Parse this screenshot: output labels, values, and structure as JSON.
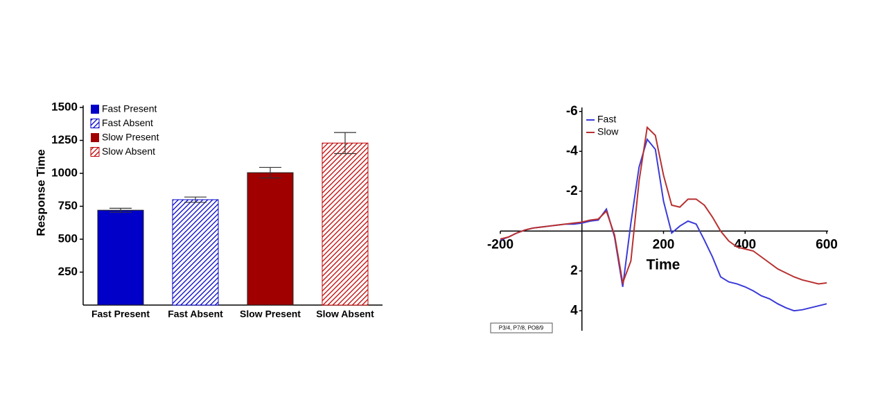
{
  "chart_data": [
    {
      "type": "bar",
      "ylabel": "Response Time",
      "categories": [
        "Fast Present",
        "Fast Absent",
        "Slow Present",
        "Slow Absent"
      ],
      "values": [
        720,
        800,
        1005,
        1230
      ],
      "errors": [
        15,
        20,
        40,
        80
      ],
      "colors": [
        "#0000c8",
        "#0000c8",
        "#a00000",
        "#c00000"
      ],
      "hatched": [
        false,
        true,
        false,
        true
      ],
      "ylim": [
        0,
        1500
      ],
      "yticks": [
        250,
        500,
        750,
        1000,
        1250,
        1500
      ]
    },
    {
      "type": "line",
      "xlabel": "Time",
      "annotation": "P3/4, P7/8, PO8/9",
      "x": [
        -200,
        -180,
        -160,
        -140,
        -120,
        -100,
        -80,
        -60,
        -40,
        -20,
        0,
        20,
        40,
        60,
        80,
        100,
        120,
        140,
        160,
        180,
        200,
        220,
        240,
        260,
        280,
        300,
        320,
        340,
        360,
        380,
        400,
        420,
        440,
        460,
        480,
        500,
        520,
        540,
        560,
        580,
        600
      ],
      "series": [
        {
          "name": "Fast",
          "color": "#3a3ad8",
          "values": [
            0.45,
            0.3,
            0.1,
            -0.05,
            -0.15,
            -0.2,
            -0.25,
            -0.3,
            -0.35,
            -0.35,
            -0.4,
            -0.5,
            -0.55,
            -1.1,
            0.3,
            2.8,
            -0.4,
            -3.2,
            -4.6,
            -4.1,
            -1.5,
            0.1,
            -0.25,
            -0.5,
            -0.35,
            0.45,
            1.3,
            2.3,
            2.55,
            2.65,
            2.8,
            3.0,
            3.25,
            3.4,
            3.65,
            3.85,
            4.0,
            3.95,
            3.85,
            3.75,
            3.65
          ]
        },
        {
          "name": "Slow",
          "color": "#b83030",
          "values": [
            0.4,
            0.3,
            0.1,
            -0.05,
            -0.15,
            -0.2,
            -0.25,
            -0.3,
            -0.35,
            -0.4,
            -0.45,
            -0.55,
            -0.6,
            -1.0,
            0.2,
            2.6,
            1.5,
            -2.5,
            -5.2,
            -4.8,
            -2.8,
            -1.3,
            -1.2,
            -1.6,
            -1.6,
            -1.3,
            -0.7,
            0,
            0.5,
            0.8,
            0.9,
            1.0,
            1.3,
            1.6,
            1.9,
            2.1,
            2.3,
            2.45,
            2.55,
            2.65,
            2.6
          ]
        }
      ],
      "xlim": [
        -200,
        600
      ],
      "ylim": [
        -6.2,
        5
      ],
      "y_inverted": true,
      "xticks": [
        -200,
        200,
        400,
        600
      ],
      "yticks": [
        -6,
        -4,
        -2,
        2,
        4
      ]
    }
  ]
}
